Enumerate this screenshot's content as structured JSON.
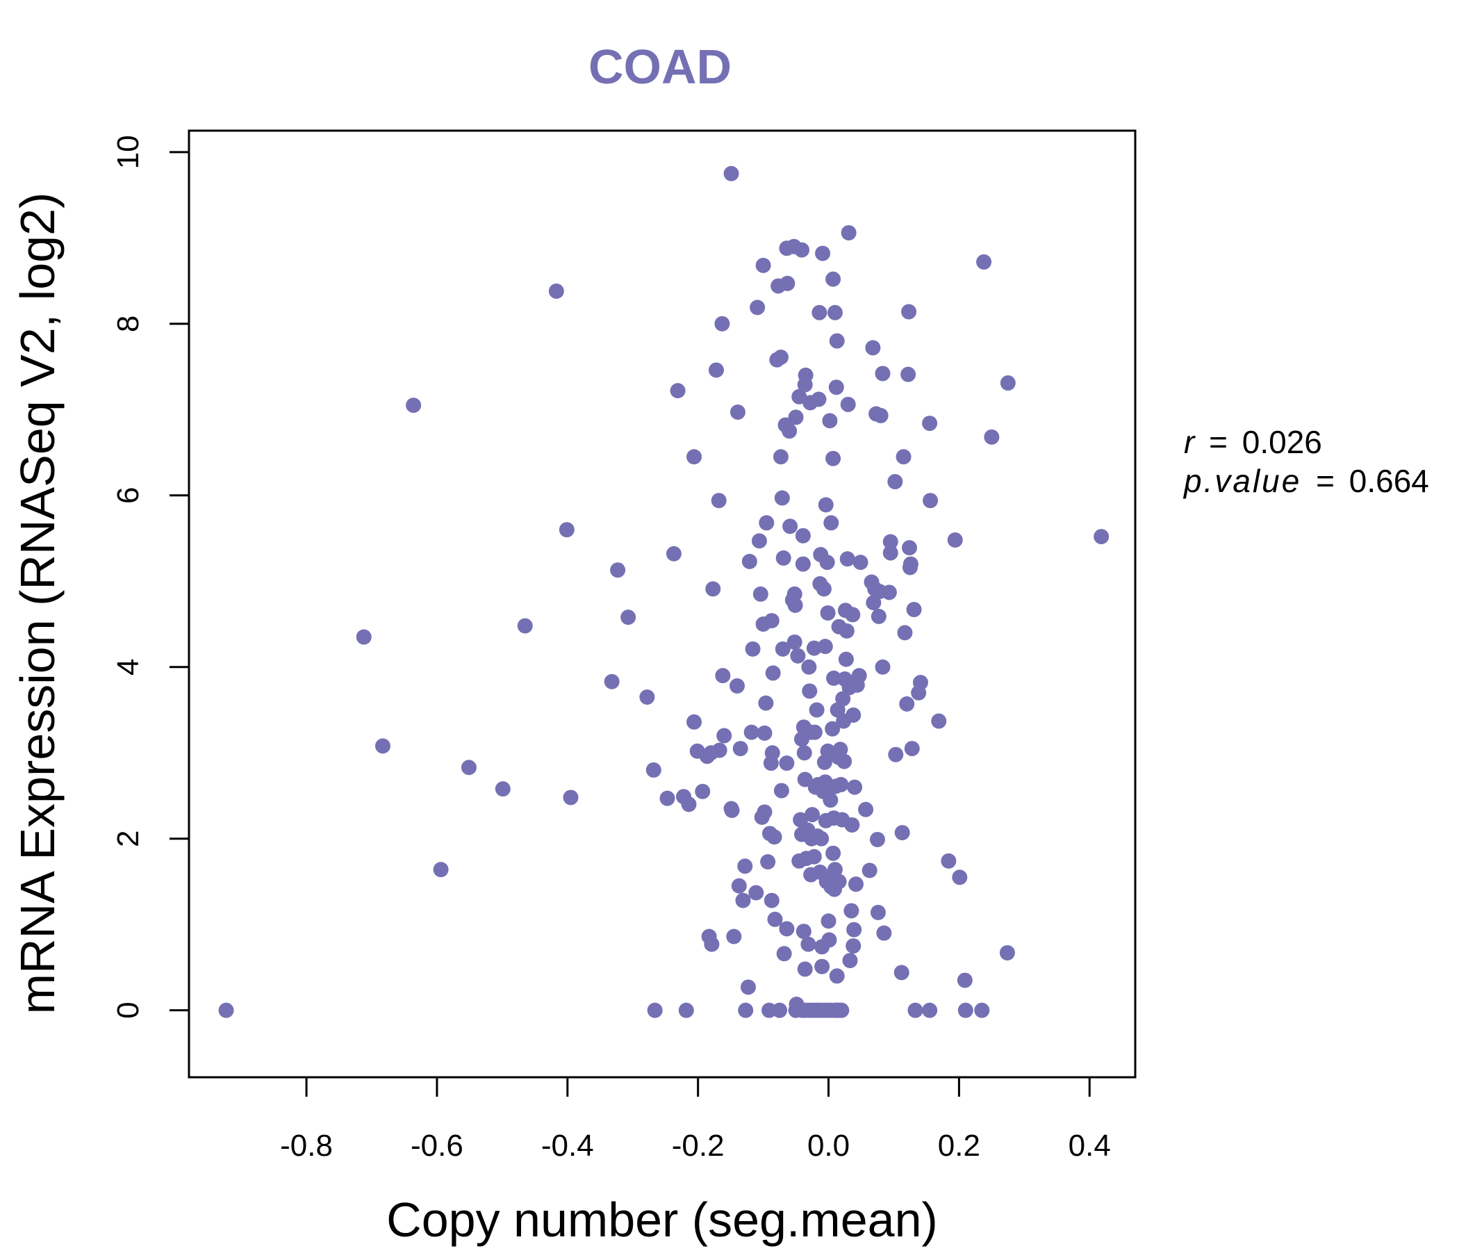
{
  "chart_data": {
    "type": "scatter",
    "title": "COAD",
    "xlabel": "Copy number (seg.mean)",
    "ylabel": "mRNA Expression (RNASeq V2, log2)",
    "xlim": [
      -0.98,
      0.47
    ],
    "ylim": [
      -0.78,
      10.25
    ],
    "xticks": [
      -0.8,
      -0.6,
      -0.4,
      -0.2,
      0.0,
      0.2,
      0.4
    ],
    "xtick_labels": [
      "-0.8",
      "-0.6",
      "-0.4",
      "-0.2",
      "0.0",
      "0.2",
      "0.4"
    ],
    "yticks": [
      0,
      2,
      4,
      6,
      8,
      10
    ],
    "ytick_labels": [
      "0",
      "2",
      "4",
      "6",
      "8",
      "10"
    ],
    "color": "#7570b3",
    "stats": {
      "r_label": "r",
      "r_value": "0.026",
      "p_label": "p.value",
      "p_value": "0.664"
    },
    "points": [
      [
        -0.923,
        0.0
      ],
      [
        -0.712,
        4.35
      ],
      [
        -0.683,
        3.08
      ],
      [
        -0.636,
        7.05
      ],
      [
        -0.594,
        1.64
      ],
      [
        -0.551,
        2.83
      ],
      [
        -0.499,
        2.58
      ],
      [
        -0.465,
        4.48
      ],
      [
        -0.417,
        8.38
      ],
      [
        -0.401,
        5.6
      ],
      [
        -0.395,
        2.48
      ],
      [
        -0.332,
        3.83
      ],
      [
        -0.323,
        5.13
      ],
      [
        -0.307,
        4.58
      ],
      [
        -0.278,
        3.65
      ],
      [
        -0.268,
        2.8
      ],
      [
        -0.266,
        0.0
      ],
      [
        -0.247,
        2.47
      ],
      [
        -0.237,
        5.32
      ],
      [
        -0.231,
        7.22
      ],
      [
        -0.222,
        2.49
      ],
      [
        -0.218,
        0.0
      ],
      [
        -0.214,
        2.4
      ],
      [
        -0.206,
        3.36
      ],
      [
        -0.206,
        6.45
      ],
      [
        -0.201,
        3.02
      ],
      [
        -0.193,
        2.55
      ],
      [
        -0.186,
        2.96
      ],
      [
        -0.183,
        0.86
      ],
      [
        -0.18,
        3.0
      ],
      [
        -0.179,
        0.77
      ],
      [
        -0.177,
        4.91
      ],
      [
        -0.172,
        7.46
      ],
      [
        -0.167,
        3.03
      ],
      [
        -0.168,
        5.94
      ],
      [
        -0.163,
        8.0
      ],
      [
        -0.162,
        3.9
      ],
      [
        -0.16,
        3.2
      ],
      [
        -0.149,
        9.75
      ],
      [
        -0.149,
        2.35
      ],
      [
        -0.148,
        2.33
      ],
      [
        -0.145,
        0.86
      ],
      [
        -0.14,
        3.78
      ],
      [
        -0.139,
        6.97
      ],
      [
        -0.137,
        1.45
      ],
      [
        -0.135,
        3.05
      ],
      [
        -0.131,
        1.28
      ],
      [
        -0.128,
        1.68
      ],
      [
        -0.127,
        0.0
      ],
      [
        -0.123,
        0.27
      ],
      [
        -0.121,
        5.23
      ],
      [
        -0.118,
        3.24
      ],
      [
        -0.116,
        4.21
      ],
      [
        -0.111,
        1.37
      ],
      [
        -0.109,
        8.19
      ],
      [
        -0.106,
        5.47
      ],
      [
        -0.104,
        4.85
      ],
      [
        -0.102,
        2.25
      ],
      [
        -0.1,
        8.68
      ],
      [
        -0.1,
        4.5
      ],
      [
        -0.098,
        2.31
      ],
      [
        -0.098,
        3.23
      ],
      [
        -0.096,
        3.58
      ],
      [
        -0.095,
        5.68
      ],
      [
        -0.093,
        1.73
      ],
      [
        -0.091,
        0.0
      ],
      [
        -0.09,
        2.06
      ],
      [
        -0.088,
        2.88
      ],
      [
        -0.087,
        4.54
      ],
      [
        -0.087,
        1.28
      ],
      [
        -0.086,
        3.0
      ],
      [
        -0.085,
        3.93
      ],
      [
        -0.083,
        2.02
      ],
      [
        -0.082,
        1.06
      ],
      [
        -0.079,
        7.58
      ],
      [
        -0.077,
        8.44
      ],
      [
        -0.075,
        0.0
      ],
      [
        -0.073,
        7.61
      ],
      [
        -0.073,
        6.45
      ],
      [
        -0.072,
        2.56
      ],
      [
        -0.071,
        5.97
      ],
      [
        -0.07,
        4.21
      ],
      [
        -0.069,
        5.27
      ],
      [
        -0.068,
        0.66
      ],
      [
        -0.066,
        6.82
      ],
      [
        -0.064,
        2.88
      ],
      [
        -0.064,
        0.95
      ],
      [
        -0.064,
        8.88
      ],
      [
        -0.063,
        8.47
      ],
      [
        -0.06,
        6.75
      ],
      [
        -0.059,
        5.64
      ],
      [
        -0.055,
        4.78
      ],
      [
        -0.053,
        8.9
      ],
      [
        -0.052,
        4.29
      ],
      [
        -0.052,
        4.85
      ],
      [
        -0.051,
        4.72
      ],
      [
        -0.05,
        0.0
      ],
      [
        -0.05,
        6.91
      ],
      [
        -0.049,
        0.07
      ],
      [
        -0.047,
        4.13
      ],
      [
        -0.045,
        1.74
      ],
      [
        -0.045,
        7.15
      ],
      [
        -0.043,
        2.22
      ],
      [
        -0.041,
        8.86
      ],
      [
        -0.041,
        3.16
      ],
      [
        -0.041,
        2.05
      ],
      [
        -0.04,
        0.0
      ],
      [
        -0.039,
        5.53
      ],
      [
        -0.039,
        5.2
      ],
      [
        -0.038,
        3.3
      ],
      [
        -0.038,
        0.92
      ],
      [
        -0.037,
        3.0
      ],
      [
        -0.036,
        7.29
      ],
      [
        -0.036,
        2.69
      ],
      [
        -0.036,
        0.48
      ],
      [
        -0.035,
        0.0
      ],
      [
        -0.035,
        7.4
      ],
      [
        -0.034,
        1.77
      ],
      [
        -0.033,
        2.06
      ],
      [
        -0.032,
        2.1
      ],
      [
        -0.031,
        0.77
      ],
      [
        -0.03,
        4.0
      ],
      [
        -0.029,
        0.0
      ],
      [
        -0.029,
        3.72
      ],
      [
        -0.028,
        7.08
      ],
      [
        -0.027,
        3.24
      ],
      [
        -0.027,
        1.58
      ],
      [
        -0.026,
        2.0
      ],
      [
        -0.025,
        2.28
      ],
      [
        -0.024,
        0.0
      ],
      [
        -0.022,
        1.79
      ],
      [
        -0.022,
        4.22
      ],
      [
        -0.021,
        3.24
      ],
      [
        -0.02,
        2.6
      ],
      [
        -0.019,
        0.0
      ],
      [
        -0.018,
        3.5
      ],
      [
        -0.017,
        2.03
      ],
      [
        -0.016,
        0.0
      ],
      [
        -0.016,
        2.63
      ],
      [
        -0.015,
        7.12
      ],
      [
        -0.014,
        8.13
      ],
      [
        -0.013,
        1.61
      ],
      [
        -0.013,
        4.97
      ],
      [
        -0.012,
        5.31
      ],
      [
        -0.011,
        0.0
      ],
      [
        -0.011,
        2.0
      ],
      [
        -0.01,
        0.51
      ],
      [
        -0.01,
        0.74
      ],
      [
        -0.009,
        8.82
      ],
      [
        -0.008,
        2.55
      ],
      [
        -0.007,
        4.91
      ],
      [
        -0.006,
        0.0
      ],
      [
        -0.006,
        2.89
      ],
      [
        -0.005,
        4.24
      ],
      [
        -0.005,
        2.66
      ],
      [
        -0.004,
        2.21
      ],
      [
        -0.004,
        5.89
      ],
      [
        -0.003,
        1.5
      ],
      [
        -0.002,
        0.0
      ],
      [
        -0.002,
        5.22
      ],
      [
        -0.001,
        4.63
      ],
      [
        -0.001,
        3.02
      ],
      [
        0.0,
        1.04
      ],
      [
        0.0,
        2.59
      ],
      [
        0.001,
        0.82
      ],
      [
        0.002,
        6.87
      ],
      [
        0.003,
        0.0
      ],
      [
        0.003,
        2.45
      ],
      [
        0.004,
        5.68
      ],
      [
        0.004,
        1.44
      ],
      [
        0.005,
        1.57
      ],
      [
        0.006,
        3.28
      ],
      [
        0.007,
        8.52
      ],
      [
        0.007,
        1.83
      ],
      [
        0.007,
        6.43
      ],
      [
        0.008,
        3.87
      ],
      [
        0.008,
        2.24
      ],
      [
        0.009,
        1.41
      ],
      [
        0.009,
        0.0
      ],
      [
        0.01,
        1.64
      ],
      [
        0.01,
        8.13
      ],
      [
        0.011,
        2.61
      ],
      [
        0.011,
        0.0
      ],
      [
        0.012,
        7.26
      ],
      [
        0.013,
        0.0
      ],
      [
        0.013,
        7.8
      ],
      [
        0.013,
        0.4
      ],
      [
        0.014,
        3.5
      ],
      [
        0.015,
        2.95
      ],
      [
        0.015,
        0.0
      ],
      [
        0.016,
        1.5
      ],
      [
        0.016,
        4.47
      ],
      [
        0.017,
        0.0
      ],
      [
        0.018,
        3.04
      ],
      [
        0.019,
        2.63
      ],
      [
        0.02,
        0.0
      ],
      [
        0.021,
        2.22
      ],
      [
        0.022,
        3.63
      ],
      [
        0.023,
        3.37
      ],
      [
        0.024,
        2.9
      ],
      [
        0.025,
        3.86
      ],
      [
        0.026,
        4.66
      ],
      [
        0.027,
        4.09
      ],
      [
        0.028,
        4.42
      ],
      [
        0.029,
        5.26
      ],
      [
        0.03,
        7.06
      ],
      [
        0.031,
        9.06
      ],
      [
        0.032,
        3.76
      ],
      [
        0.033,
        0.58
      ],
      [
        0.035,
        1.16
      ],
      [
        0.036,
        2.16
      ],
      [
        0.037,
        4.61
      ],
      [
        0.038,
        0.75
      ],
      [
        0.038,
        3.44
      ],
      [
        0.039,
        0.94
      ],
      [
        0.04,
        2.6
      ],
      [
        0.042,
        1.47
      ],
      [
        0.044,
        3.79
      ],
      [
        0.047,
        3.9
      ],
      [
        0.049,
        5.22
      ],
      [
        0.057,
        2.34
      ],
      [
        0.063,
        1.63
      ],
      [
        0.066,
        4.99
      ],
      [
        0.068,
        7.72
      ],
      [
        0.069,
        4.75
      ],
      [
        0.071,
        4.91
      ],
      [
        0.073,
        6.95
      ],
      [
        0.075,
        1.99
      ],
      [
        0.076,
        1.14
      ],
      [
        0.077,
        4.59
      ],
      [
        0.078,
        4.88
      ],
      [
        0.08,
        6.93
      ],
      [
        0.083,
        7.42
      ],
      [
        0.083,
        4.0
      ],
      [
        0.085,
        0.9
      ],
      [
        0.093,
        4.87
      ],
      [
        0.095,
        5.46
      ],
      [
        0.095,
        5.33
      ],
      [
        0.102,
        6.16
      ],
      [
        0.103,
        2.98
      ],
      [
        0.112,
        0.44
      ],
      [
        0.113,
        2.07
      ],
      [
        0.115,
        6.45
      ],
      [
        0.117,
        4.4
      ],
      [
        0.12,
        3.57
      ],
      [
        0.122,
        7.41
      ],
      [
        0.123,
        8.14
      ],
      [
        0.124,
        5.39
      ],
      [
        0.125,
        5.16
      ],
      [
        0.126,
        5.2
      ],
      [
        0.128,
        3.05
      ],
      [
        0.131,
        4.67
      ],
      [
        0.133,
        0.0
      ],
      [
        0.138,
        3.7
      ],
      [
        0.141,
        3.82
      ],
      [
        0.155,
        6.84
      ],
      [
        0.156,
        5.94
      ],
      [
        0.155,
        0.0
      ],
      [
        0.169,
        3.37
      ],
      [
        0.184,
        1.74
      ],
      [
        0.194,
        5.48
      ],
      [
        0.201,
        1.55
      ],
      [
        0.209,
        0.35
      ],
      [
        0.21,
        0.0
      ],
      [
        0.235,
        0.0
      ],
      [
        0.238,
        8.72
      ],
      [
        0.25,
        6.68
      ],
      [
        0.274,
        0.67
      ],
      [
        0.275,
        7.31
      ],
      [
        0.418,
        5.52
      ]
    ]
  }
}
